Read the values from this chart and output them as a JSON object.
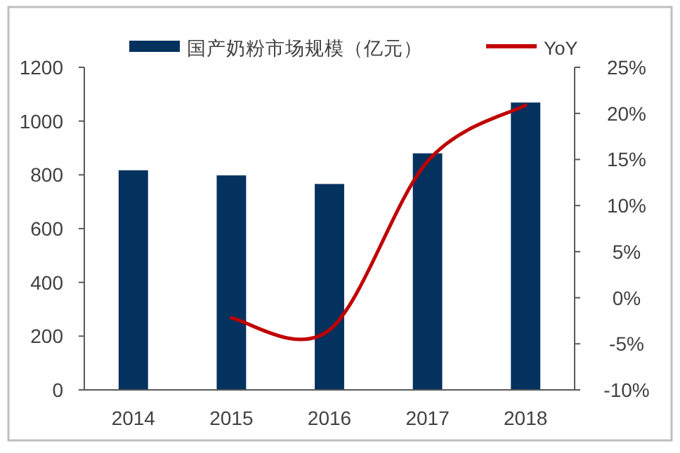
{
  "chart_data": {
    "type": "bar",
    "categories": [
      "2014",
      "2015",
      "2016",
      "2017",
      "2018"
    ],
    "series": [
      {
        "name": "国产奶粉市场规模（亿元）",
        "color": "#05315f",
        "values": [
          817,
          798,
          766,
          880,
          1069
        ]
      },
      {
        "name": "YoY",
        "type": "line",
        "axis": "y2",
        "color": "#c00000",
        "values": [
          null,
          -2.2,
          -3.5,
          14.8,
          20.9
        ]
      }
    ],
    "ylim": [
      0,
      1200
    ],
    "yticks": [
      0,
      200,
      400,
      600,
      800,
      1000,
      1200
    ],
    "y2lim": [
      -10,
      25
    ],
    "y2ticks": [
      {
        "value": -10,
        "label": "-10%"
      },
      {
        "value": -5,
        "label": "-5%"
      },
      {
        "value": 0,
        "label": "0%"
      },
      {
        "value": 5,
        "label": "5%"
      },
      {
        "value": 10,
        "label": "10%"
      },
      {
        "value": 15,
        "label": "15%"
      },
      {
        "value": 20,
        "label": "20%"
      },
      {
        "value": 25,
        "label": "25%"
      }
    ],
    "legend": "top",
    "grid": false,
    "marker": "none",
    "line_style": "solid"
  }
}
